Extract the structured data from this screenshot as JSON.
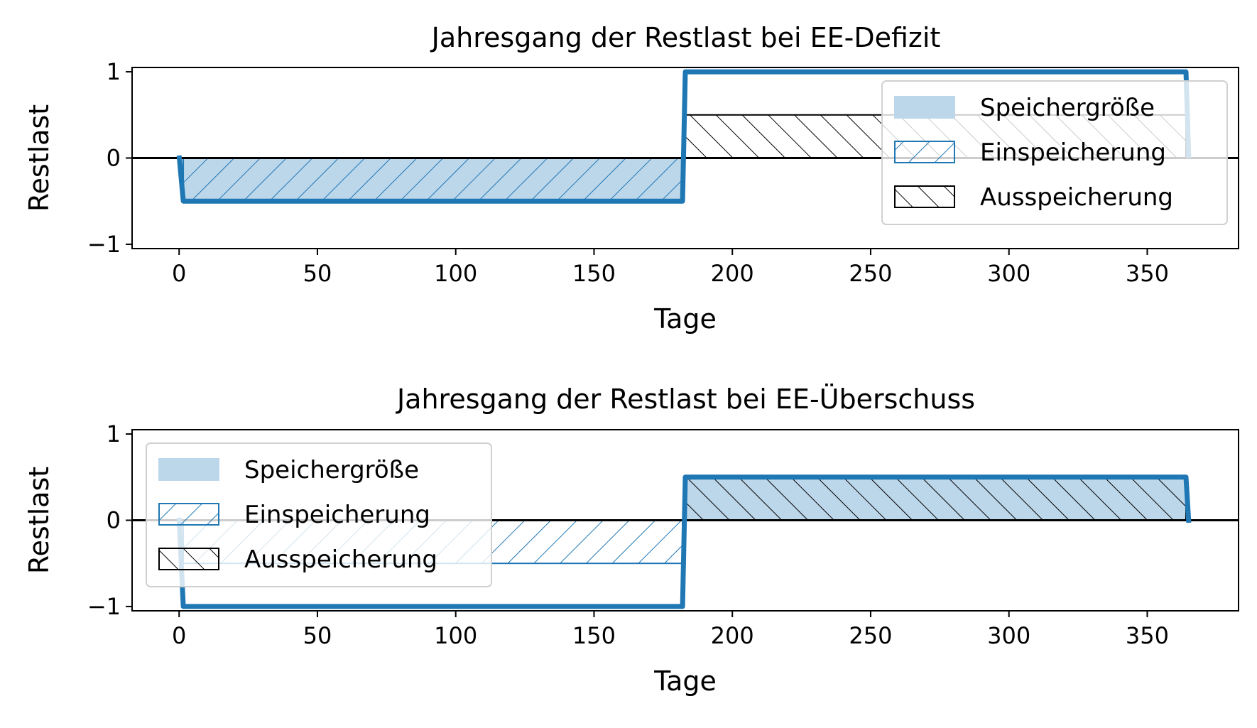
{
  "colors": {
    "blue": "#1f77b4",
    "fill_light": "#bcd6ea",
    "black": "#000000",
    "legend_border": "#d0d0d0"
  },
  "legend_labels": {
    "storage": "Speichergröße",
    "charge": "Einspeicherung",
    "discharge": "Ausspeicherung"
  },
  "chart_data": [
    {
      "type": "line",
      "title": "Jahresgang der Restlast bei EE-Defizit",
      "xlabel": "Tage",
      "ylabel": "Restlast",
      "xlim": [
        -17,
        383
      ],
      "ylim": [
        -1.05,
        1.05
      ],
      "xticks": [
        0,
        50,
        100,
        150,
        200,
        250,
        300,
        350
      ],
      "yticks": [
        -1,
        0,
        1
      ],
      "grid": false,
      "legend_position": "top-right",
      "series": [
        {
          "role": "restlast",
          "x": [
            0,
            1.5,
            182,
            183,
            364,
            365
          ],
          "y": [
            0.03,
            -0.5,
            -0.5,
            1.0,
            1.0,
            0.0
          ]
        }
      ],
      "fills": {
        "storage": {
          "x": [
            1.5,
            182
          ],
          "y_top": 0,
          "y_bottom": -0.5
        },
        "charge": {
          "x": [
            1.5,
            182
          ],
          "y_top": 0,
          "y_bottom": -0.5
        },
        "discharge": {
          "x": [
            183,
            364
          ],
          "y_top": 0.5,
          "y_bottom": 0
        }
      }
    },
    {
      "type": "line",
      "title": "Jahresgang der Restlast bei EE-Überschuss",
      "xlabel": "Tage",
      "ylabel": "Restlast",
      "xlim": [
        -17,
        383
      ],
      "ylim": [
        -1.05,
        1.05
      ],
      "xticks": [
        0,
        50,
        100,
        150,
        200,
        250,
        300,
        350
      ],
      "yticks": [
        -1,
        0,
        1
      ],
      "grid": false,
      "legend_position": "top-left",
      "series": [
        {
          "role": "restlast",
          "x": [
            0,
            1.5,
            182,
            183,
            364,
            365
          ],
          "y": [
            0.03,
            -1.0,
            -1.0,
            0.5,
            0.5,
            -0.03
          ]
        }
      ],
      "fills": {
        "storage": {
          "x": [
            183,
            364
          ],
          "y_top": 0.5,
          "y_bottom": 0
        },
        "charge": {
          "x": [
            1.5,
            182
          ],
          "y_top": 0,
          "y_bottom": -0.5
        },
        "discharge": {
          "x": [
            183,
            364
          ],
          "y_top": 0.5,
          "y_bottom": 0
        }
      }
    }
  ]
}
